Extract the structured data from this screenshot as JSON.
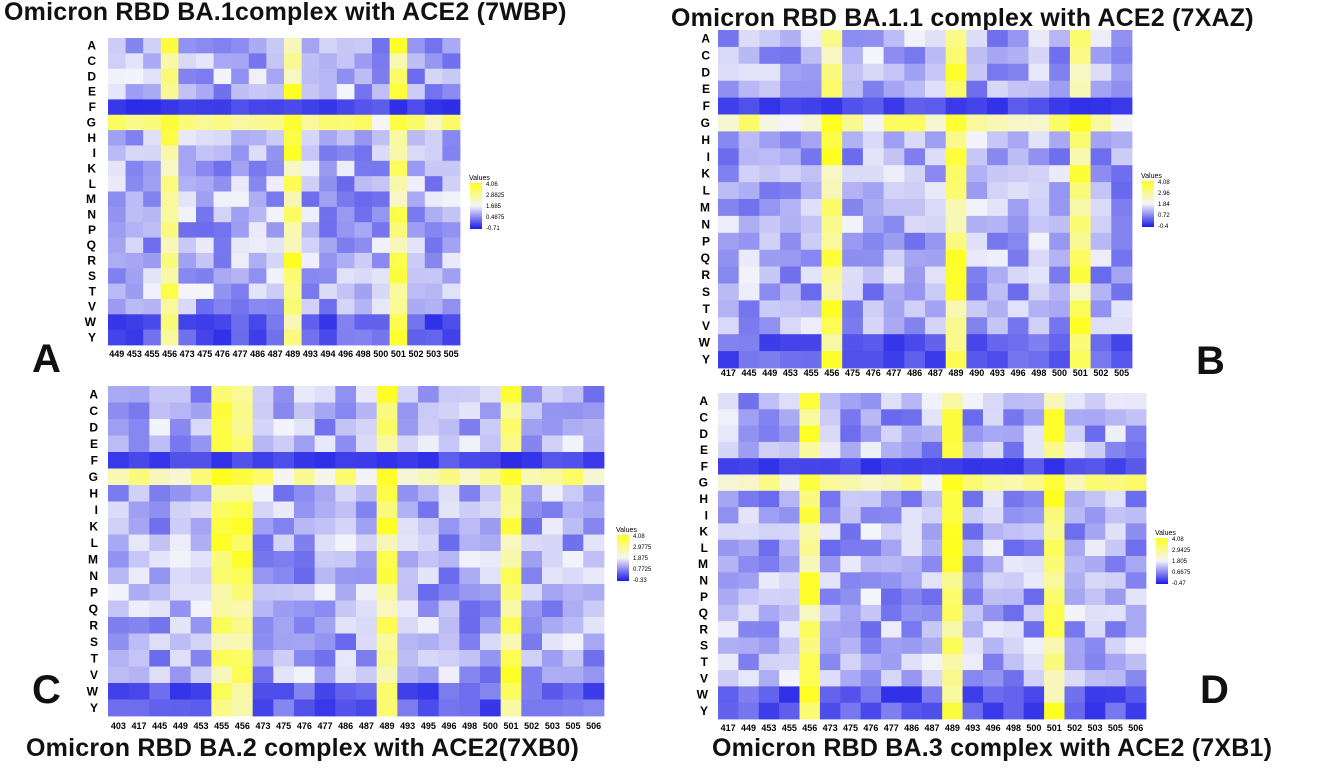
{
  "chart_data": [
    {
      "type": "heatmap",
      "panel_letter": "A",
      "title": "Omicron RBD BA.1complex with ACE2 (7WBP)",
      "y_labels": [
        "A",
        "C",
        "D",
        "E",
        "F",
        "G",
        "H",
        "I",
        "K",
        "L",
        "M",
        "N",
        "P",
        "Q",
        "R",
        "S",
        "T",
        "V",
        "W",
        "Y"
      ],
      "x_labels": [
        "449",
        "453",
        "455",
        "456",
        "473",
        "475",
        "476",
        "477",
        "486",
        "487",
        "489",
        "493",
        "494",
        "496",
        "498",
        "500",
        "501",
        "502",
        "503",
        "505"
      ],
      "legend": {
        "title": "Values",
        "ticks": [
          "4.06",
          "2.8825",
          "1.685",
          "0.4875",
          "-0.71"
        ],
        "min": -0.71,
        "max": 4.06
      },
      "hot_columns": [
        "456",
        "489",
        "501"
      ],
      "cool_row": "F",
      "warm_row": "G"
    },
    {
      "type": "heatmap",
      "panel_letter": "B",
      "title": "Omicron RBD BA.1.1 complex with ACE2 (7XAZ)",
      "y_labels": [
        "A",
        "C",
        "D",
        "E",
        "F",
        "G",
        "H",
        "I",
        "K",
        "L",
        "M",
        "N",
        "P",
        "Q",
        "R",
        "S",
        "T",
        "V",
        "W",
        "Y"
      ],
      "x_labels": [
        "417",
        "445",
        "449",
        "453",
        "455",
        "456",
        "475",
        "476",
        "477",
        "486",
        "487",
        "489",
        "490",
        "493",
        "496",
        "498",
        "500",
        "501",
        "502",
        "505"
      ],
      "legend": {
        "title": "Values",
        "ticks": [
          "4.08",
          "2.96",
          "1.84",
          "0.72",
          "-0.4"
        ],
        "min": -0.4,
        "max": 4.08
      },
      "hot_columns": [
        "456",
        "489",
        "501"
      ],
      "cool_row": "F",
      "warm_row": "G"
    },
    {
      "type": "heatmap",
      "panel_letter": "C",
      "title": "Omicron RBD BA.2 complex  with ACE2(7XB0)",
      "y_labels": [
        "A",
        "C",
        "D",
        "E",
        "F",
        "G",
        "H",
        "I",
        "K",
        "L",
        "M",
        "N",
        "P",
        "Q",
        "R",
        "S",
        "T",
        "V",
        "W",
        "Y"
      ],
      "x_labels": [
        "403",
        "417",
        "445",
        "449",
        "453",
        "455",
        "456",
        "473",
        "475",
        "476",
        "477",
        "486",
        "487",
        "489",
        "493",
        "495",
        "496",
        "498",
        "500",
        "501",
        "502",
        "503",
        "505",
        "506"
      ],
      "legend": {
        "title": "Values",
        "ticks": [
          "4.08",
          "2.9775",
          "1.875",
          "0.7725",
          "-0.33"
        ],
        "min": -0.33,
        "max": 4.08
      },
      "hot_columns": [
        "455",
        "456",
        "489",
        "501"
      ],
      "cool_row": "F",
      "warm_row": "G"
    },
    {
      "type": "heatmap",
      "panel_letter": "D",
      "title": "Omicron RBD BA.3 complex with ACE2 (7XB1)",
      "y_labels": [
        "A",
        "C",
        "D",
        "E",
        "F",
        "G",
        "H",
        "I",
        "K",
        "L",
        "M",
        "N",
        "P",
        "Q",
        "R",
        "S",
        "T",
        "V",
        "W",
        "Y"
      ],
      "x_labels": [
        "417",
        "449",
        "453",
        "455",
        "456",
        "473",
        "475",
        "476",
        "477",
        "486",
        "487",
        "489",
        "493",
        "496",
        "498",
        "500",
        "501",
        "502",
        "503",
        "505",
        "506"
      ],
      "legend": {
        "title": "Values",
        "ticks": [
          "4.08",
          "2.9425",
          "1.805",
          "0.6675",
          "-0.47"
        ],
        "min": -0.47,
        "max": 4.08
      },
      "hot_columns": [
        "456",
        "489",
        "501"
      ],
      "cool_row": "F",
      "warm_row": "G"
    }
  ],
  "colors": {
    "low": "#1a1ae6",
    "mid": "#f4f4fb",
    "high": "#ffff1e"
  }
}
